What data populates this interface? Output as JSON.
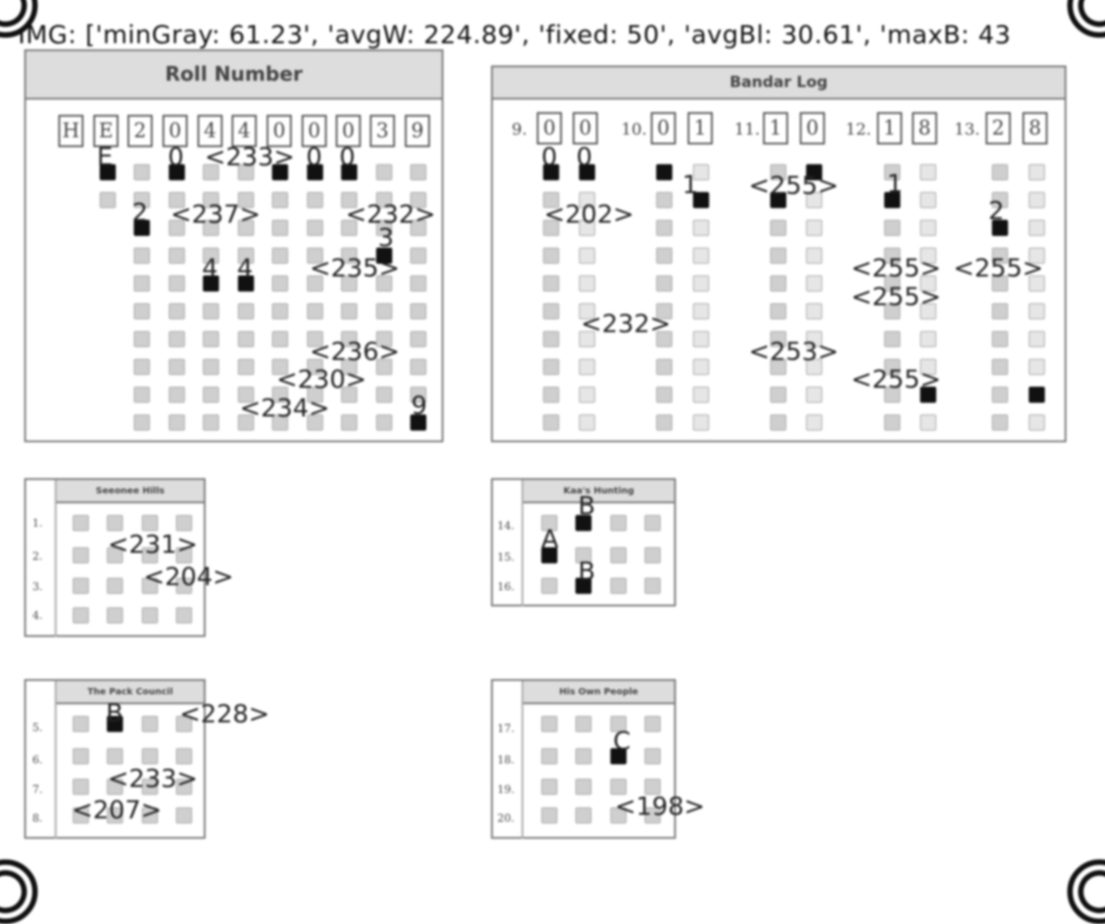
{
  "debug_text": "IMG: ['minGray: 61.23', 'avgW: 224.89', 'fixed: 50', 'avgBl: 30.61', 'maxB: 43",
  "panels": {
    "roll": {
      "title": "Roll Number",
      "boxes": [
        "H",
        "E",
        "2",
        "0",
        "4",
        "4",
        "0",
        "0",
        "0",
        "3",
        "9"
      ]
    },
    "bandar": {
      "title": "Bandar Log",
      "q9": "9.",
      "q10": "10.",
      "q11": "11.",
      "q12": "12.",
      "q13": "13.",
      "boxes": [
        "0",
        "0",
        "0",
        "1",
        "1",
        "0",
        "1",
        "8",
        "2",
        "8"
      ]
    },
    "seeonee": {
      "title": "Seeonee Hills",
      "qnums": [
        "1.",
        "2.",
        "3.",
        "4."
      ]
    },
    "kaa": {
      "title": "Kaa's Hunting",
      "qnums": [
        "14.",
        "15.",
        "16."
      ]
    },
    "pack": {
      "title": "The Pack Council",
      "qnums": [
        "5.",
        "6.",
        "7.",
        "8."
      ]
    },
    "own": {
      "title": "His Own People",
      "qnums": [
        "17.",
        "18.",
        "19.",
        "20."
      ]
    }
  },
  "annotations": [
    {
      "id": "a1",
      "text": "E"
    },
    {
      "id": "a2",
      "text": "0"
    },
    {
      "id": "a3",
      "text": "<233>"
    },
    {
      "id": "a4",
      "text": "0"
    },
    {
      "id": "a5",
      "text": "0"
    },
    {
      "id": "a6",
      "text": "2"
    },
    {
      "id": "a7",
      "text": "<237>"
    },
    {
      "id": "a8",
      "text": "<232>"
    },
    {
      "id": "a9",
      "text": "3"
    },
    {
      "id": "a10",
      "text": "4"
    },
    {
      "id": "a11",
      "text": "4"
    },
    {
      "id": "a12",
      "text": "<235>"
    },
    {
      "id": "a13",
      "text": "<236>"
    },
    {
      "id": "a14",
      "text": "<230>"
    },
    {
      "id": "a15",
      "text": "<234>"
    },
    {
      "id": "a16",
      "text": "9"
    },
    {
      "id": "b1",
      "text": "0"
    },
    {
      "id": "b2",
      "text": "0"
    },
    {
      "id": "b3",
      "text": "1"
    },
    {
      "id": "b4",
      "text": "<202>"
    },
    {
      "id": "b5",
      "text": "<255>"
    },
    {
      "id": "b6",
      "text": "1"
    },
    {
      "id": "b7",
      "text": "2"
    },
    {
      "id": "b8",
      "text": "<255>"
    },
    {
      "id": "b9",
      "text": "<255>"
    },
    {
      "id": "b10",
      "text": "<255>"
    },
    {
      "id": "b11",
      "text": "<232>"
    },
    {
      "id": "b12",
      "text": "<253>"
    },
    {
      "id": "b13",
      "text": "<255>"
    },
    {
      "id": "c1",
      "text": "<231>"
    },
    {
      "id": "c2",
      "text": "<204>"
    },
    {
      "id": "d1",
      "text": "B"
    },
    {
      "id": "d2",
      "text": "A"
    },
    {
      "id": "d3",
      "text": "B"
    },
    {
      "id": "e1",
      "text": "B"
    },
    {
      "id": "e2",
      "text": "<228>"
    },
    {
      "id": "e3",
      "text": "<233>"
    },
    {
      "id": "e4",
      "text": "<207>"
    },
    {
      "id": "f1",
      "text": "C"
    },
    {
      "id": "f2",
      "text": "<198>"
    }
  ]
}
